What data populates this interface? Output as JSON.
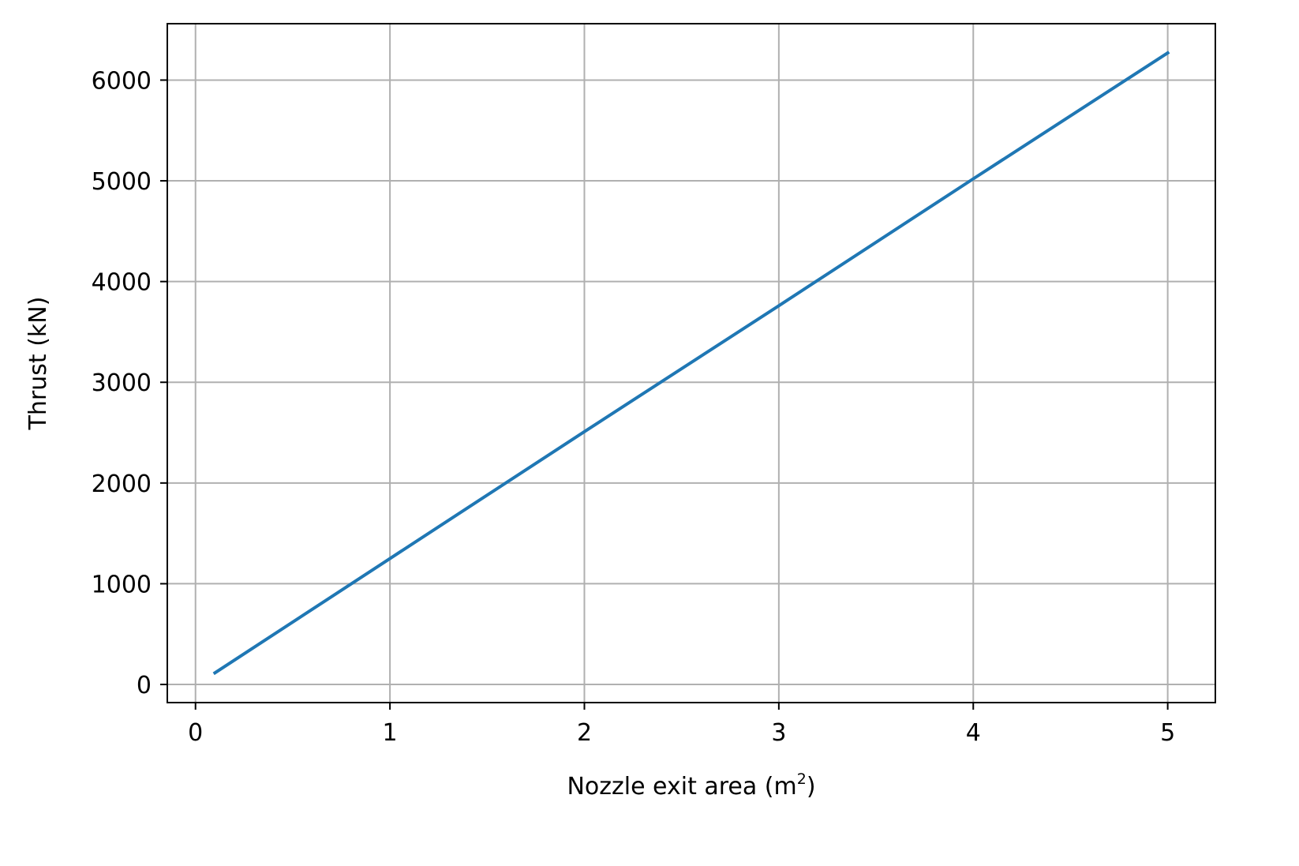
{
  "chart_data": {
    "type": "line",
    "title": "",
    "xlabel": "Nozzle exit area (m",
    "xlabel_superscript": "2",
    "xlabel_suffix": ")",
    "ylabel": "Thrust (kN)",
    "xlim": [
      -0.145,
      5.245
    ],
    "ylim": [
      -180,
      6560
    ],
    "x_ticks": [
      0,
      1,
      2,
      3,
      4,
      5
    ],
    "x_tick_labels": [
      "0",
      "1",
      "2",
      "3",
      "4",
      "5"
    ],
    "y_ticks": [
      0,
      1000,
      2000,
      3000,
      4000,
      5000,
      6000
    ],
    "y_tick_labels": [
      "0",
      "1000",
      "2000",
      "3000",
      "4000",
      "5000",
      "6000"
    ],
    "grid": true,
    "series": [
      {
        "color": "#1f77b4",
        "x": [
          0.1,
          1,
          2,
          3,
          4,
          5
        ],
        "y": [
          115,
          1250,
          2510,
          3760,
          5020,
          6270
        ]
      }
    ]
  },
  "colors": {
    "grid": "#b0b0b0",
    "axes": "#000000",
    "background": "#ffffff"
  }
}
